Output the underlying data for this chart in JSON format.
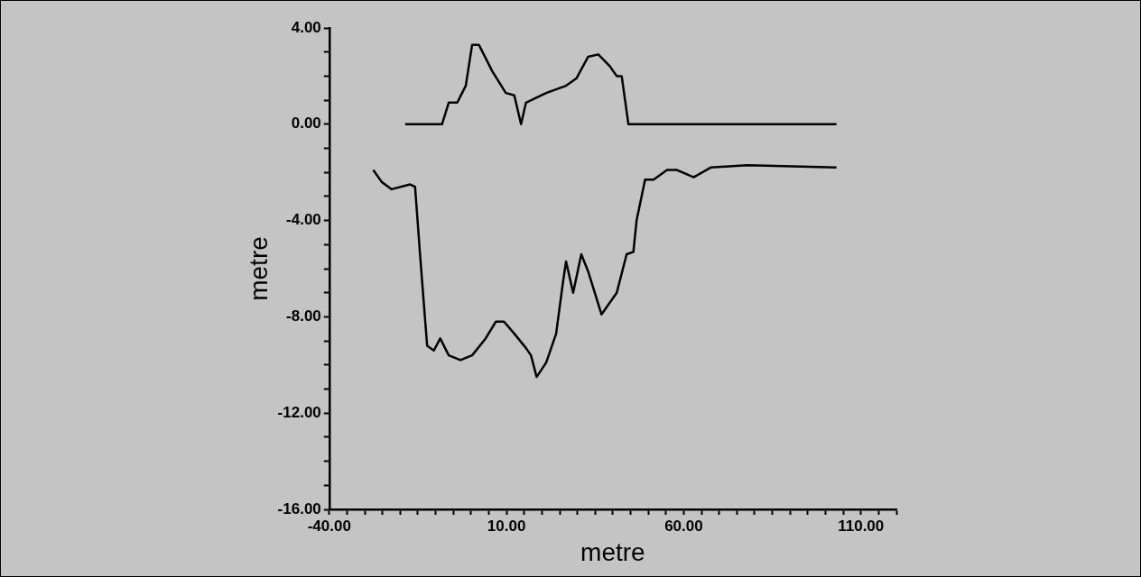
{
  "chart_data": {
    "type": "line",
    "xlabel": "metre",
    "ylabel": "metre",
    "xlim": [
      -40,
      120
    ],
    "ylim": [
      -16,
      4
    ],
    "xticks": [
      {
        "value": -40,
        "label": "-40.00"
      },
      {
        "value": -35,
        "label": null
      },
      {
        "value": -30,
        "label": null
      },
      {
        "value": -25,
        "label": null
      },
      {
        "value": -20,
        "label": null
      },
      {
        "value": -15,
        "label": null
      },
      {
        "value": -10,
        "label": null
      },
      {
        "value": -5,
        "label": null
      },
      {
        "value": 0,
        "label": null
      },
      {
        "value": 5,
        "label": null
      },
      {
        "value": 10,
        "label": "10.00"
      },
      {
        "value": 15,
        "label": null
      },
      {
        "value": 20,
        "label": null
      },
      {
        "value": 25,
        "label": null
      },
      {
        "value": 30,
        "label": null
      },
      {
        "value": 35,
        "label": null
      },
      {
        "value": 40,
        "label": null
      },
      {
        "value": 45,
        "label": null
      },
      {
        "value": 50,
        "label": null
      },
      {
        "value": 55,
        "label": null
      },
      {
        "value": 60,
        "label": "60.00"
      },
      {
        "value": 65,
        "label": null
      },
      {
        "value": 70,
        "label": null
      },
      {
        "value": 75,
        "label": null
      },
      {
        "value": 80,
        "label": null
      },
      {
        "value": 85,
        "label": null
      },
      {
        "value": 90,
        "label": null
      },
      {
        "value": 95,
        "label": null
      },
      {
        "value": 100,
        "label": null
      },
      {
        "value": 105,
        "label": null
      },
      {
        "value": 110,
        "label": "110.00"
      },
      {
        "value": 115,
        "label": null
      },
      {
        "value": 120,
        "label": null
      }
    ],
    "yticks": [
      {
        "value": -16,
        "label": "-16.00"
      },
      {
        "value": -15,
        "label": null
      },
      {
        "value": -14,
        "label": null
      },
      {
        "value": -13,
        "label": null
      },
      {
        "value": -12,
        "label": "-12.00"
      },
      {
        "value": -11,
        "label": null
      },
      {
        "value": -10,
        "label": null
      },
      {
        "value": -9,
        "label": null
      },
      {
        "value": -8,
        "label": "-8.00"
      },
      {
        "value": -7,
        "label": null
      },
      {
        "value": -6,
        "label": null
      },
      {
        "value": -5,
        "label": null
      },
      {
        "value": -4,
        "label": "-4.00"
      },
      {
        "value": -3,
        "label": null
      },
      {
        "value": -2,
        "label": null
      },
      {
        "value": -1,
        "label": null
      },
      {
        "value": 0,
        "label": "0.00"
      },
      {
        "value": 1,
        "label": null
      },
      {
        "value": 2,
        "label": null
      },
      {
        "value": 3,
        "label": null
      },
      {
        "value": 4,
        "label": "4.00"
      }
    ],
    "grid": false,
    "legend": false,
    "marker": "none",
    "line_style": "solid",
    "series": [
      {
        "color": "#000000",
        "x": [
          -18.6,
          -8.2,
          -6.3,
          -3.9,
          -1.5,
          0.3,
          2.2,
          6.0,
          9.8,
          12.2,
          14.1,
          15.5,
          21.2,
          26.8,
          29.7,
          33.0,
          35.9,
          39.2,
          41.1,
          42.5,
          44.4,
          103.1
        ],
        "values": [
          0,
          0,
          0.9,
          0.9,
          1.6,
          3.3,
          3.3,
          2.2,
          1.3,
          1.2,
          0,
          0.9,
          1.3,
          1.6,
          1.9,
          2.8,
          2.9,
          2.4,
          2.0,
          2.0,
          0,
          0
        ]
      },
      {
        "color": "#000000",
        "x": [
          -27.6,
          -25.2,
          -22.4,
          -17.2,
          -15.8,
          -14.3,
          -12.4,
          -10.5,
          -8.7,
          -6.3,
          -3.0,
          0.3,
          4.1,
          7.0,
          9.3,
          12.2,
          15.5,
          16.9,
          18.5,
          21.2,
          24.0,
          25.9,
          26.8,
          28.8,
          31.1,
          33.0,
          36.8,
          41.1,
          43.9,
          45.8,
          46.7,
          49.1,
          51.5,
          55.3,
          58.1,
          62.8,
          67.6,
          78.0,
          103.1
        ],
        "values": [
          -1.9,
          -2.4,
          -2.7,
          -2.5,
          -2.6,
          -5.6,
          -9.2,
          -9.4,
          -8.9,
          -9.6,
          -9.8,
          -9.6,
          -8.9,
          -8.2,
          -8.2,
          -8.7,
          -9.3,
          -9.6,
          -10.5,
          -9.9,
          -8.7,
          -6.6,
          -5.7,
          -7.0,
          -5.4,
          -6.1,
          -7.9,
          -7.0,
          -5.4,
          -5.3,
          -4.0,
          -2.3,
          -2.3,
          -1.9,
          -1.9,
          -2.2,
          -1.8,
          -1.7,
          -1.8
        ]
      }
    ]
  }
}
